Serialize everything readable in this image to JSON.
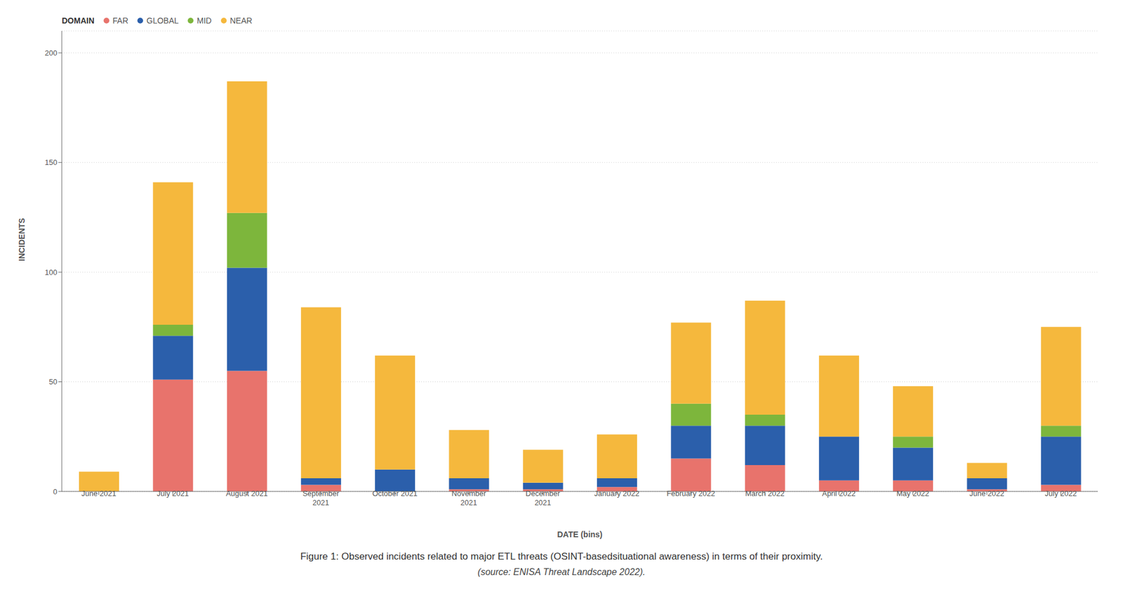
{
  "chart_data": {
    "type": "bar",
    "stacked": true,
    "categories": [
      "June 2021",
      "July 2021",
      "August 2021",
      "September\n2021",
      "October 2021",
      "November\n2021",
      "December\n2021",
      "January 2022",
      "February 2022",
      "March 2022",
      "April 2022",
      "May 2022",
      "June 2022",
      "July 2022"
    ],
    "series": [
      {
        "name": "FAR",
        "color": "#E8736C",
        "values": [
          0,
          51,
          55,
          3,
          0,
          1,
          1,
          2,
          15,
          12,
          5,
          5,
          1,
          3
        ]
      },
      {
        "name": "GLOBAL",
        "color": "#2B5FAB",
        "values": [
          0,
          20,
          47,
          3,
          10,
          5,
          3,
          4,
          15,
          18,
          20,
          15,
          5,
          22
        ]
      },
      {
        "name": "MID",
        "color": "#7DB63C",
        "values": [
          0,
          5,
          25,
          0,
          0,
          0,
          0,
          0,
          10,
          5,
          0,
          5,
          0,
          5
        ]
      },
      {
        "name": "NEAR",
        "color": "#F5B83D",
        "values": [
          9,
          65,
          60,
          78,
          52,
          22,
          15,
          20,
          37,
          52,
          37,
          23,
          7,
          45
        ]
      }
    ],
    "ylabel": "INCIDENTS",
    "xlabel": "DATE (bins)",
    "ylim": [
      0,
      210
    ],
    "yticks": [
      0,
      50,
      100,
      150,
      200
    ],
    "grid": true,
    "legend": "upper left",
    "legend_title": "DOMAIN",
    "annotations": [
      "Figure 1: Observed incidents related to major ETL threats (OSINT-basedsituational awareness) in terms of their proximity.",
      "(source: ENISA Threat Landscape 2022)."
    ]
  }
}
